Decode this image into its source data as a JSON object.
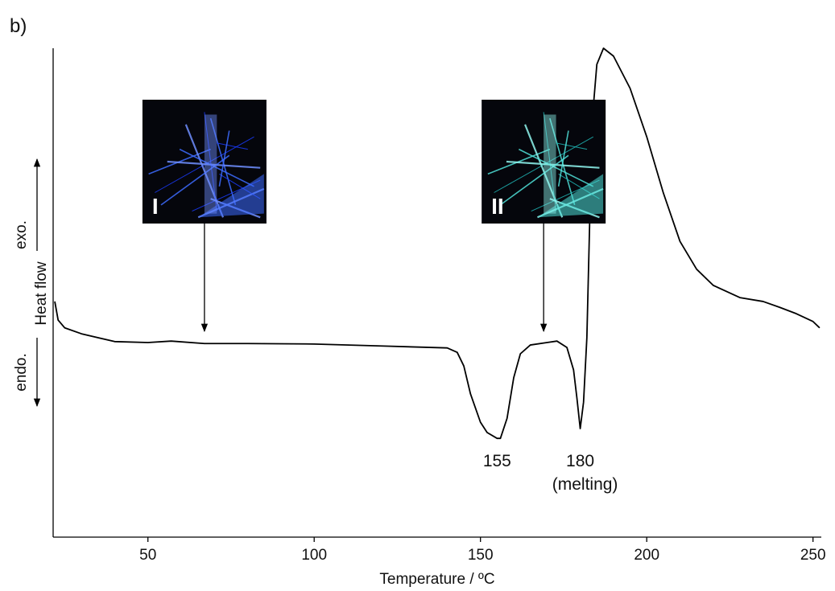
{
  "chart_data": {
    "type": "line",
    "panel_label": "b)",
    "x_label": "Temperature / ºC",
    "y_label": "Heat flow",
    "y_up_label": "exo.",
    "y_down_label": "endo.",
    "xlim": [
      21.5,
      252.5
    ],
    "xticks": [
      50,
      100,
      150,
      200,
      250
    ],
    "ylim": [
      0,
      100
    ],
    "grid": false,
    "series": [
      {
        "color": "#000000",
        "x": [
          22,
          23,
          25,
          30,
          40,
          50,
          57,
          67,
          80,
          100,
          120,
          140,
          143,
          145,
          147,
          150,
          152,
          155,
          156,
          158,
          160,
          162,
          165,
          170,
          173,
          176,
          178,
          179,
          180,
          181,
          182,
          183,
          184,
          185,
          187,
          190,
          195,
          200,
          205,
          210,
          215,
          220,
          228,
          235,
          240,
          245,
          250,
          252
        ],
        "values": [
          48.2,
          44.4,
          42.8,
          41.6,
          40.0,
          39.8,
          40.1,
          39.6,
          39.6,
          39.5,
          39.1,
          38.7,
          37.8,
          35.0,
          29.3,
          23.5,
          21.4,
          20.2,
          20.2,
          24.3,
          32.6,
          37.5,
          39.3,
          39.8,
          40.1,
          38.8,
          34.2,
          28.5,
          22.2,
          27.6,
          40.8,
          68.8,
          88.5,
          96.7,
          100,
          98.4,
          91.8,
          81.9,
          70.4,
          60.5,
          54.8,
          51.5,
          49.0,
          48.2,
          47.0,
          45.7,
          44.1,
          42.8
        ]
      }
    ],
    "annotations": [
      {
        "x": 155,
        "lines": [
          "155"
        ]
      },
      {
        "x": 180,
        "lines": [
          "180",
          "(melting)"
        ]
      }
    ],
    "insets": [
      {
        "x": 67,
        "label": "I"
      },
      {
        "x": 169,
        "label": "II"
      }
    ]
  }
}
